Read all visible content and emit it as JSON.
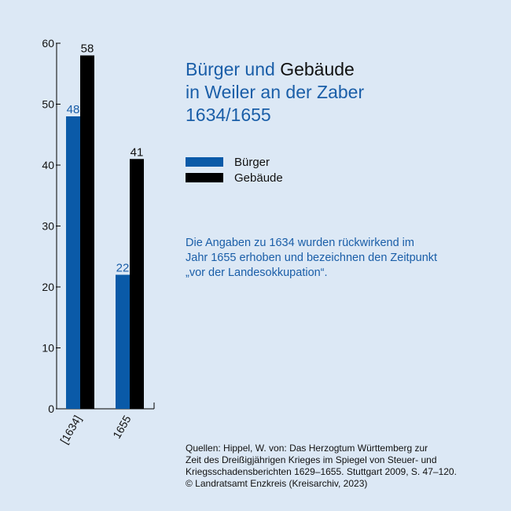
{
  "header": {
    "title_part1": "Bürger und",
    "title_part2": "Gebäude",
    "title_line2": "in Weiler an der Zaber",
    "title_line3": "1634/1655"
  },
  "legend": [
    {
      "label": "Bürger",
      "color": "#0a5aa8"
    },
    {
      "label": "Gebäude",
      "color": "#000000"
    }
  ],
  "note": {
    "line1": "Die Angaben zu 1634 wurden rückwirkend im",
    "line2": "Jahr 1655 erhoben und bezeichnen den Zeitpunkt",
    "line3": "„vor der Landesokkupation“."
  },
  "source": {
    "line1": "Quellen: Hippel, W. von: Das Herzogtum Württemberg zur",
    "line2": "Zeit des Dreißigjährigen Krieges im Spiegel von Steuer- und",
    "line3": "Kriegsschadensberichten 1629–1655. Stuttgart 2009, S. 47–120.",
    "line4": "© Landratsamt Enzkreis (Kreisarchiv, 2023)"
  },
  "chart_data": {
    "type": "bar",
    "categories": [
      "[1634]",
      "1655"
    ],
    "series": [
      {
        "name": "Bürger",
        "values": [
          48,
          22
        ],
        "color": "#0a5aa8"
      },
      {
        "name": "Gebäude",
        "values": [
          58,
          41
        ],
        "color": "#000000"
      }
    ],
    "ylim": [
      0,
      60
    ],
    "yticks": [
      0,
      10,
      20,
      30,
      40,
      50,
      60
    ],
    "grid": false
  }
}
